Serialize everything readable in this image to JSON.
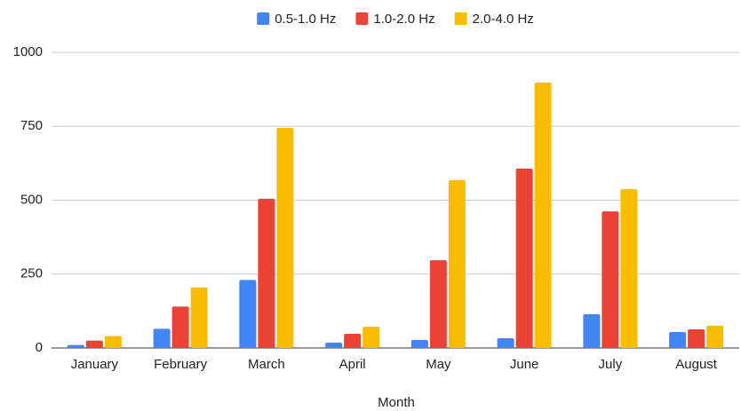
{
  "chart_data": {
    "type": "bar",
    "x_label": "Month",
    "categories": [
      "January",
      "February",
      "March",
      "April",
      "May",
      "June",
      "July",
      "August"
    ],
    "series": [
      {
        "name": "0.5-1.0 Hz",
        "color": "#4285f4",
        "values": [
          10,
          65,
          230,
          18,
          27,
          33,
          114,
          54
        ]
      },
      {
        "name": "1.0-2.0 Hz",
        "color": "#ea4335",
        "values": [
          25,
          140,
          505,
          48,
          297,
          607,
          462,
          63
        ]
      },
      {
        "name": "2.0-4.0 Hz",
        "color": "#fbbc04",
        "values": [
          40,
          205,
          745,
          72,
          568,
          898,
          537,
          75
        ]
      }
    ],
    "ylim": [
      0,
      1000
    ],
    "yticks": [
      0,
      250,
      500,
      750,
      1000
    ],
    "grid": true,
    "legend": "top"
  }
}
